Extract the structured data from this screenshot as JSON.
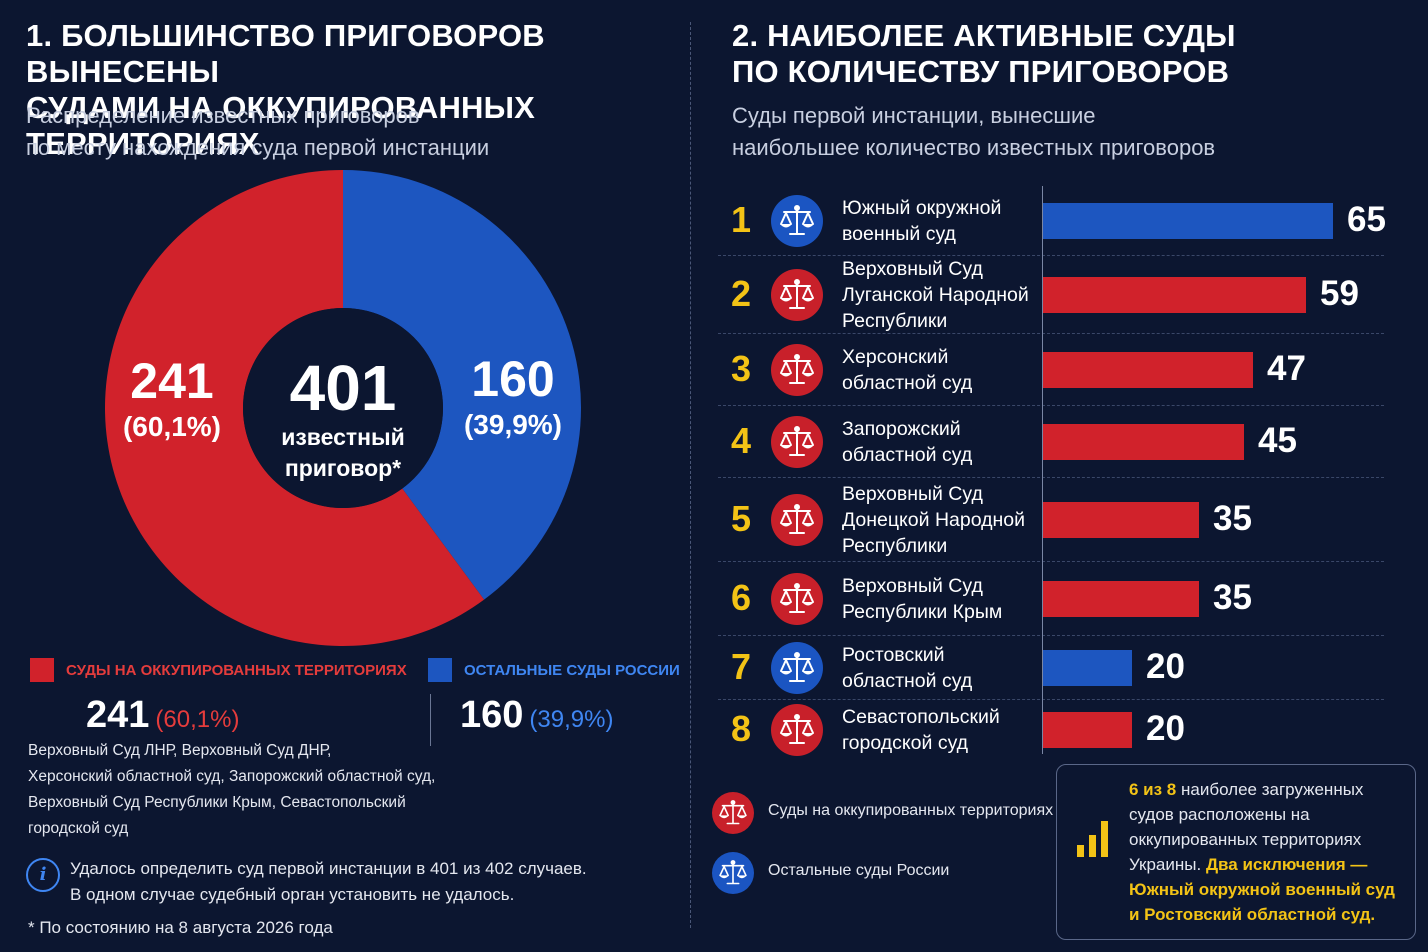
{
  "left": {
    "title_lines": [
      "1. Большинство приговоров вынесены",
      "судами на оккупированных территориях"
    ],
    "subtitle_lines": [
      "Распределение известных приговоров",
      "по месту нахождения суда первой инстанции"
    ],
    "center": {
      "total": "401",
      "label_lines": [
        "известный",
        "приговор*"
      ]
    },
    "slice_labels": {
      "occupied": {
        "value": "241",
        "pct": "(60,1%)"
      },
      "russia": {
        "value": "160",
        "pct": "(39,9%)"
      }
    },
    "legend": {
      "occupied": {
        "label": "Суды на оккупированных территориях",
        "value": "241",
        "pct": "(60,1%)",
        "desc_lines": [
          "Верховный Суд ЛНР, Верховный Суд ДНР,",
          "Херсонский областной суд, Запорожский областной суд,",
          "Верховный Суд Республики Крым, Севастопольский",
          "городской суд"
        ]
      },
      "russia": {
        "label": "Остальные суды России",
        "value": "160",
        "pct": "(39,9%)"
      }
    },
    "info_icon": "i",
    "info_lines": [
      "Удалось определить суд первой инстанции в 401 из 402 случаев.",
      "В одном случае судебный орган установить не удалось."
    ],
    "footnote": "* По состоянию на 8 августа 2026 года"
  },
  "right": {
    "title_lines": [
      "2. Наиболее активные суды",
      "по количеству приговоров"
    ],
    "subtitle_lines": [
      "Суды первой инстанции, вынесшие",
      "наибольшее количество известных приговоров"
    ],
    "legend": {
      "occupied": "Суды на оккупированных территориях",
      "russia": "Остальные суды России"
    },
    "note": {
      "n1": "6 из 8",
      "t1": " наиболее загруженных судов расположены на оккупированных территориях Украины. ",
      "t2": "Два исключения — Южный окружной военный суд и Ростовский областной суд."
    }
  },
  "colors": {
    "background": "#0c1630",
    "occupied": "#d1222b",
    "russia": "#1d56c0",
    "accent": "#f3c316"
  },
  "icons": {
    "court": "scales-of-justice-icon",
    "info": "info-icon",
    "chart": "bar-chart-icon"
  },
  "chart_data": [
    {
      "type": "pie",
      "title": "1. Большинство приговоров вынесены судами на оккупированных территориях",
      "subtitle": "Распределение известных приговоров по месту нахождения суда первой инстанции",
      "total": 401,
      "categories": [
        "Суды на оккупированных территориях",
        "Остальные суды России"
      ],
      "values": [
        241,
        160
      ],
      "percents": [
        60.1,
        39.9
      ]
    },
    {
      "type": "bar",
      "orientation": "horizontal",
      "title": "2. Наиболее активные суды по количеству приговоров",
      "subtitle": "Суды первой инстанции, вынесшие наибольшее количество известных приговоров",
      "categories": [
        "Южный окружной военный суд",
        "Верховный Суд Луганской Народной Республики",
        "Херсонский областной суд",
        "Запорожский областной суд",
        "Верховный Суд Донецкой Народной Республики",
        "Верховный Суд Республики Крым",
        "Ростовский областной суд",
        "Севастопольский городской суд"
      ],
      "name_lines": [
        [
          "Южный окружной",
          "военный суд"
        ],
        [
          "Верховный Суд",
          "Луганской Народной",
          "Республики"
        ],
        [
          "Херсонский",
          "областной суд"
        ],
        [
          "Запорожский",
          "областной суд"
        ],
        [
          "Верховный Суд",
          "Донецкой Народной",
          "Республики"
        ],
        [
          "Верховный Суд",
          "Республики Крым"
        ],
        [
          "Ростовский",
          "областной суд"
        ],
        [
          "Севастопольский",
          "городской суд"
        ]
      ],
      "ranks": [
        "1",
        "2",
        "3",
        "4",
        "5",
        "6",
        "7",
        "8"
      ],
      "values": [
        65,
        59,
        47,
        45,
        35,
        35,
        20,
        20
      ],
      "group": [
        "russia",
        "occupied",
        "occupied",
        "occupied",
        "occupied",
        "occupied",
        "russia",
        "occupied"
      ],
      "xlim": [
        0,
        65
      ]
    }
  ]
}
